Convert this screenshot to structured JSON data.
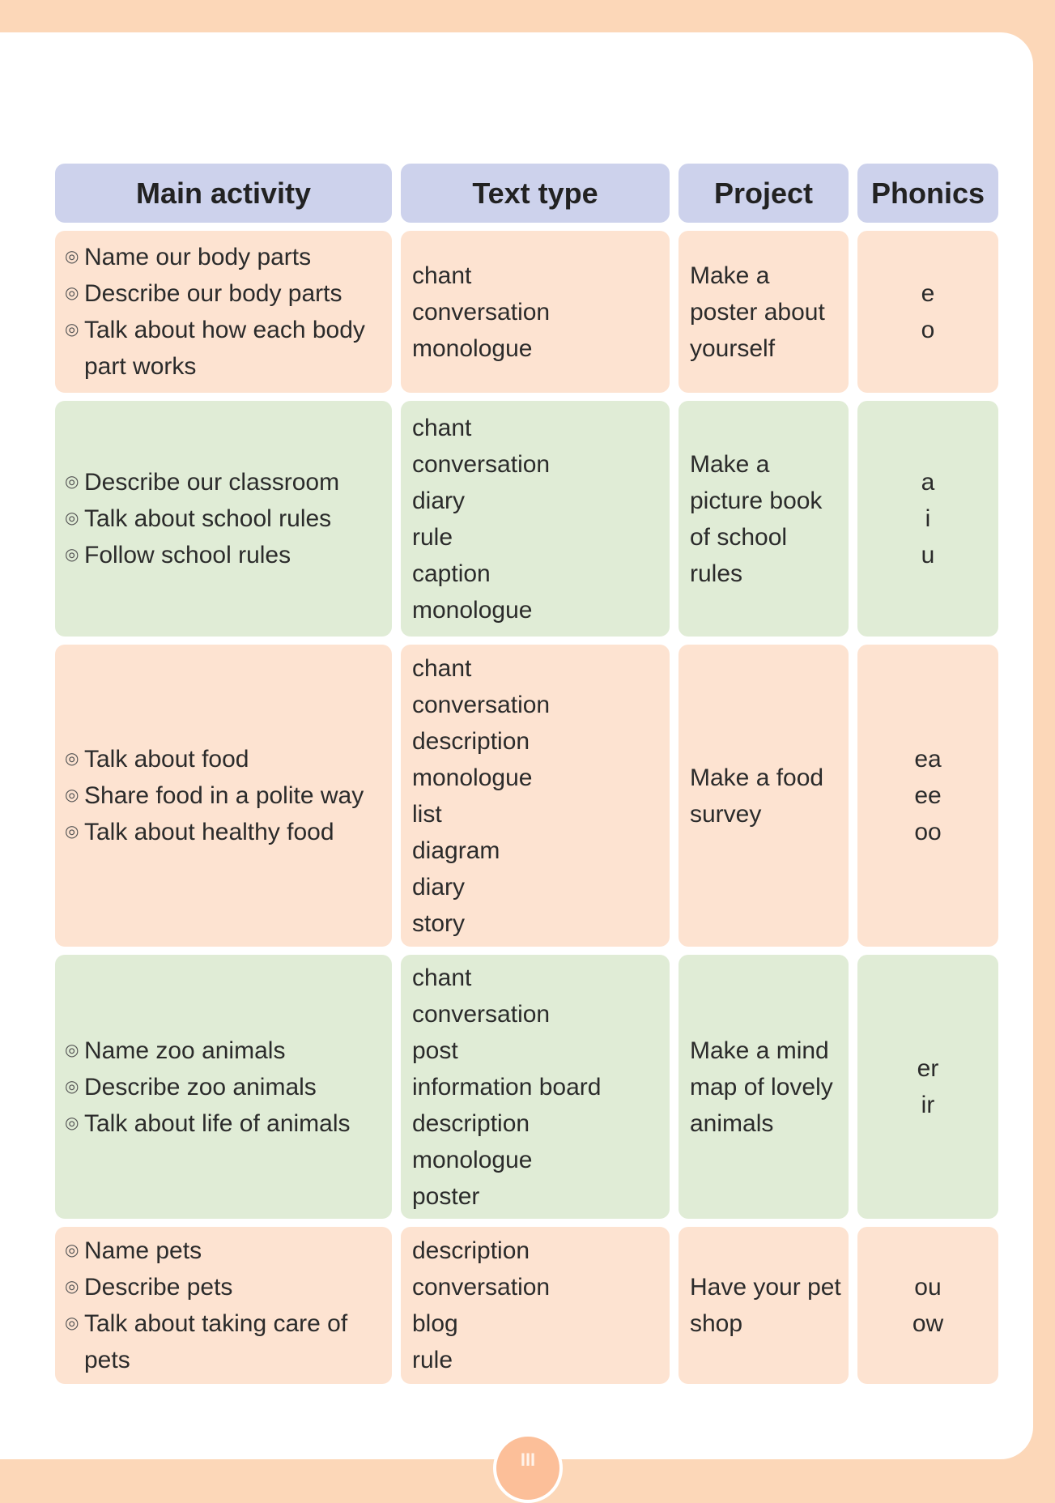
{
  "headers": {
    "main_activity": "Main activity",
    "text_type": "Text type",
    "project": "Project",
    "phonics": "Phonics"
  },
  "rows": [
    {
      "activities": [
        "Name our body parts",
        "Describe our body parts",
        "Talk about how each body part works"
      ],
      "text_types": [
        "chant",
        "conversation",
        "monologue"
      ],
      "project": [
        "Make a",
        "poster about",
        "yourself"
      ],
      "phonics": [
        "e",
        "o"
      ]
    },
    {
      "activities": [
        "Describe our classroom",
        "Talk about school rules",
        "Follow school rules"
      ],
      "text_types": [
        "chant",
        "conversation",
        "diary",
        "rule",
        "caption",
        "monologue"
      ],
      "project": [
        "Make a",
        "picture book",
        "of school",
        "rules"
      ],
      "phonics": [
        "a",
        "i",
        "u"
      ]
    },
    {
      "activities": [
        "Talk about food",
        "Share food in a polite way",
        "Talk about healthy food"
      ],
      "text_types": [
        "chant",
        "conversation",
        "description",
        "monologue",
        "list",
        "diagram",
        "diary",
        "story"
      ],
      "project": [
        "Make a food",
        "survey"
      ],
      "phonics": [
        "ea",
        "ee",
        "oo"
      ]
    },
    {
      "activities": [
        "Name zoo animals",
        "Describe zoo animals",
        "Talk about life of animals"
      ],
      "text_types": [
        "chant",
        "conversation",
        "post",
        "information board",
        "description",
        "monologue",
        "poster"
      ],
      "project": [
        "Make a mind",
        "map of lovely",
        "animals"
      ],
      "phonics": [
        "er",
        "ir"
      ]
    },
    {
      "activities": [
        "Name pets",
        "Describe pets",
        "Talk about taking care of pets"
      ],
      "text_types": [
        "description",
        "conversation",
        "blog",
        "rule"
      ],
      "project": [
        "Have your pet",
        "shop"
      ],
      "phonics": [
        "ou",
        "ow"
      ]
    }
  ],
  "bullet": "◎",
  "page_number": "III",
  "colors": {
    "header": "#cdd2ec",
    "peach_row": "#fde3d1",
    "green_row": "#e0ecd6",
    "border": "#fcd7b8"
  }
}
